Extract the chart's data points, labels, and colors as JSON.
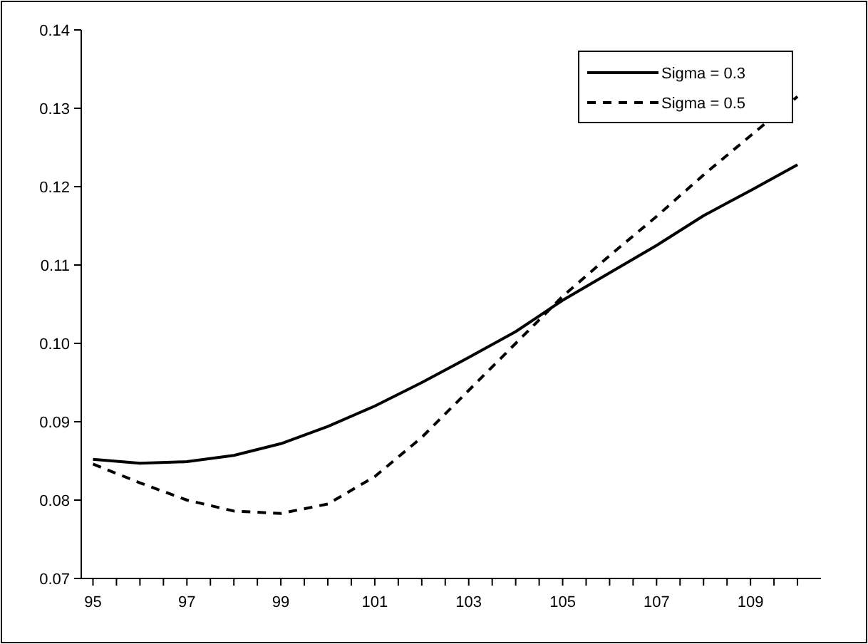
{
  "chart_data": {
    "type": "line",
    "x": [
      95,
      96,
      97,
      98,
      99,
      100,
      101,
      102,
      103,
      104,
      105,
      106,
      107,
      108,
      109,
      110
    ],
    "series": [
      {
        "name": "Sigma = 0.3",
        "color": "#000000",
        "line_style": "solid",
        "values": [
          0.0852,
          0.0847,
          0.0849,
          0.0857,
          0.0872,
          0.0894,
          0.092,
          0.095,
          0.0982,
          0.1015,
          0.1055,
          0.109,
          0.1125,
          0.1163,
          0.1195,
          0.1228
        ]
      },
      {
        "name": "Sigma = 0.5",
        "color": "#000000",
        "line_style": "dashed",
        "values": [
          0.0846,
          0.0822,
          0.08,
          0.0786,
          0.0783,
          0.0795,
          0.083,
          0.088,
          0.094,
          0.1,
          0.106,
          0.1112,
          0.1162,
          0.1215,
          0.1265,
          0.1315
        ]
      }
    ],
    "xlim": [
      94.75,
      110.5
    ],
    "xticks": [
      95,
      {
        "value": 95.5,
        "label": null
      },
      {
        "value": 96,
        "label": null
      },
      {
        "value": 96.5,
        "label": null
      },
      97,
      {
        "value": 97.5,
        "label": null
      },
      {
        "value": 98,
        "label": null
      },
      {
        "value": 98.5,
        "label": null
      },
      99,
      {
        "value": 99.5,
        "label": null
      },
      {
        "value": 100,
        "label": null
      },
      {
        "value": 100.5,
        "label": null
      },
      101,
      {
        "value": 101.5,
        "label": null
      },
      {
        "value": 102,
        "label": null
      },
      {
        "value": 102.5,
        "label": null
      },
      103,
      {
        "value": 103.5,
        "label": null
      },
      {
        "value": 104,
        "label": null
      },
      {
        "value": 104.5,
        "label": null
      },
      105,
      {
        "value": 105.5,
        "label": null
      },
      {
        "value": 106,
        "label": null
      },
      {
        "value": 106.5,
        "label": null
      },
      107,
      {
        "value": 107.5,
        "label": null
      },
      {
        "value": 108,
        "label": null
      },
      {
        "value": 108.5,
        "label": null
      },
      109,
      {
        "value": 109.5,
        "label": null
      },
      {
        "value": 110,
        "label": null
      }
    ],
    "ylim": [
      0.07,
      0.14
    ],
    "yticks": [
      {
        "value": 0.07,
        "label": "0.07"
      },
      {
        "value": 0.08,
        "label": "0.08"
      },
      {
        "value": 0.09,
        "label": "0.09"
      },
      {
        "value": 0.1,
        "label": "0.10"
      },
      {
        "value": 0.11,
        "label": "0.11"
      },
      {
        "value": 0.12,
        "label": "0.12"
      },
      {
        "value": 0.13,
        "label": "0.13"
      },
      {
        "value": 0.14,
        "label": "0.14"
      }
    ],
    "grid": false,
    "legend": "top right"
  }
}
